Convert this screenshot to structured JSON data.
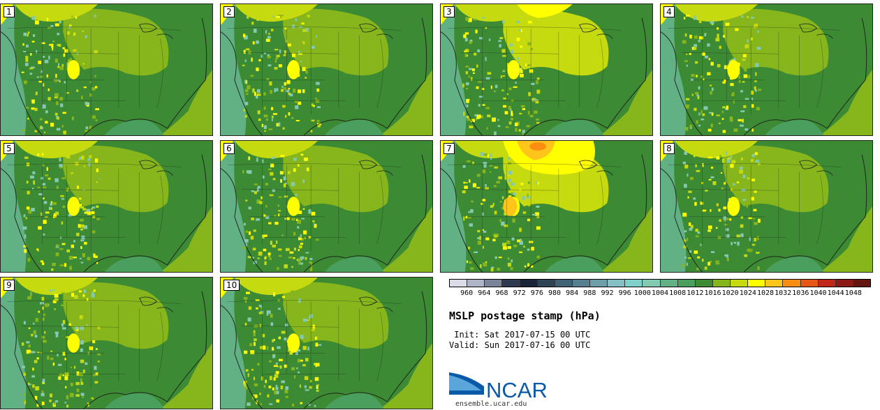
{
  "panels": [
    {
      "label": "1",
      "variant": "normal"
    },
    {
      "label": "2",
      "variant": "normal"
    },
    {
      "label": "3",
      "variant": "strong_north"
    },
    {
      "label": "4",
      "variant": "normal"
    },
    {
      "label": "5",
      "variant": "normal"
    },
    {
      "label": "6",
      "variant": "normal"
    },
    {
      "label": "7",
      "variant": "very_strong"
    },
    {
      "label": "8",
      "variant": "normal"
    },
    {
      "label": "9",
      "variant": "normal"
    },
    {
      "label": "10",
      "variant": "normal"
    }
  ],
  "colorbar": {
    "ticks": [
      "960",
      "964",
      "968",
      "972",
      "976",
      "980",
      "984",
      "988",
      "992",
      "996",
      "1000",
      "1004",
      "1008",
      "1012",
      "1016",
      "1020",
      "1024",
      "1028",
      "1032",
      "1036",
      "1040",
      "1044",
      "1048"
    ],
    "colors": [
      "#d9dde8",
      "#aeb4c6",
      "#7b8398",
      "#2e3a52",
      "#1a2438",
      "#2c4456",
      "#3f6275",
      "#567f90",
      "#6f9eab",
      "#87c0c4",
      "#7fd0c8",
      "#84c9b1",
      "#62b184",
      "#4a9e5e",
      "#3d8a34",
      "#86b61c",
      "#c6da10",
      "#ffff00",
      "#ffc51a",
      "#fb8d13",
      "#e45717",
      "#c1261a",
      "#8b1a14",
      "#651611"
    ]
  },
  "title": "MSLP postage stamp (hPa)",
  "init_line": " Init: Sat 2017-07-15 00 UTC",
  "valid_line": "Valid: Sun 2017-07-16 00 UTC",
  "logo": {
    "text": "NCAR"
  },
  "url": "ensemble.ucar.edu"
}
